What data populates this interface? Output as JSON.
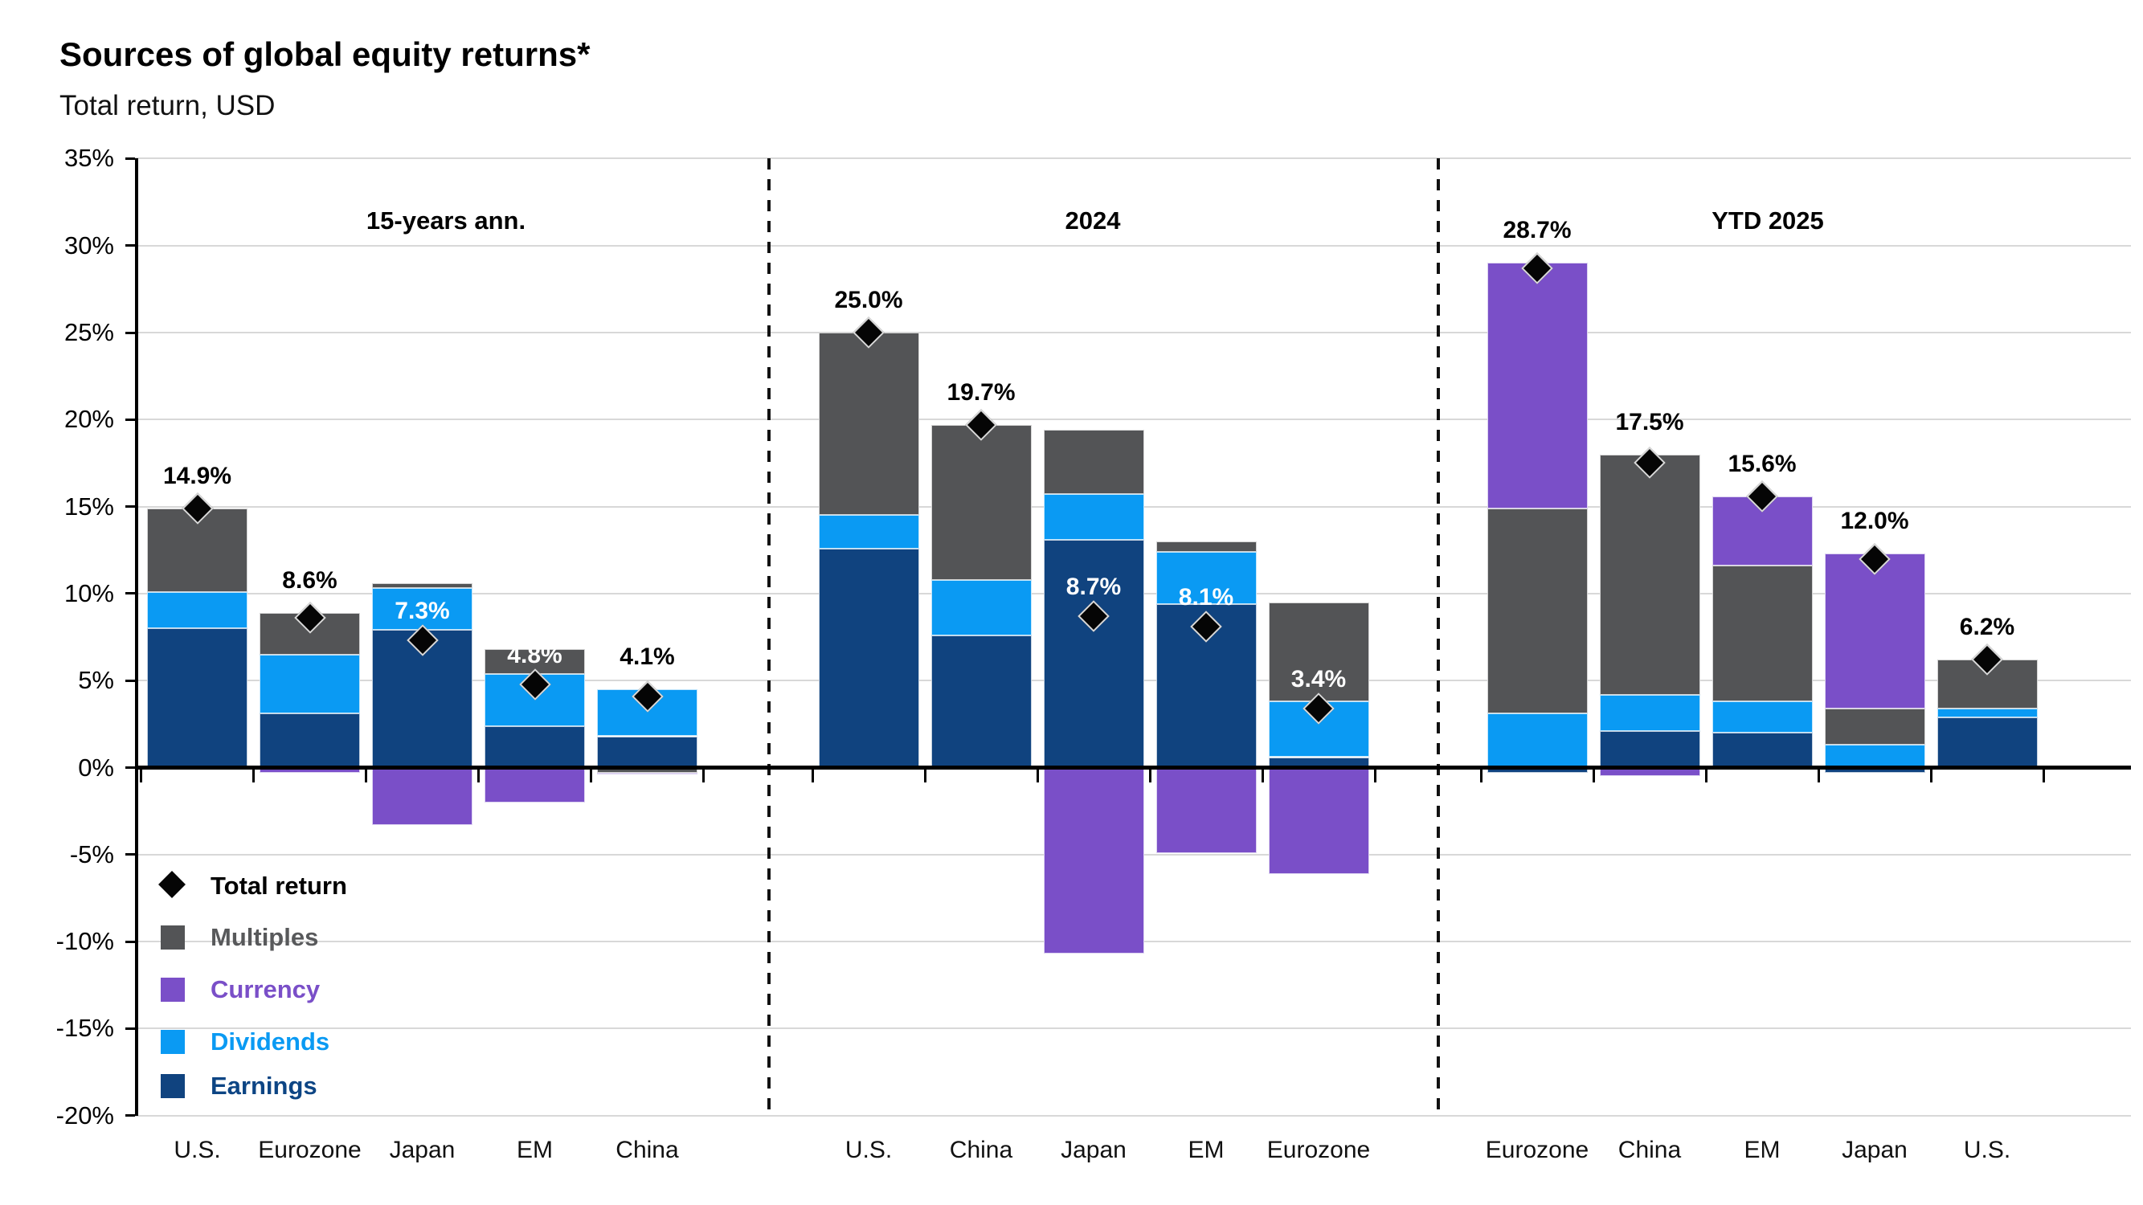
{
  "chart_data": {
    "type": "bar",
    "stacked": true,
    "title": "Sources of global equity returns*",
    "subtitle": "Total return, USD",
    "ylim": [
      -20,
      35
    ],
    "ytick_step": 5,
    "ytick_labels": [
      "35%",
      "30%",
      "25%",
      "20%",
      "15%",
      "10%",
      "5%",
      "0%",
      "-5%",
      "-10%",
      "-15%",
      "-20%"
    ],
    "grid": true,
    "legend_position": "bottom-left-inside",
    "series_order": [
      "earnings",
      "dividends",
      "multiples",
      "currency"
    ],
    "series_colors": {
      "earnings": "#10437f",
      "dividends": "#0a9af3",
      "multiples": "#535456",
      "currency": "#7a4fc8"
    },
    "marker_series": "Total return",
    "groups": [
      {
        "label": "15-years ann.",
        "bars": [
          {
            "category": "U.S.",
            "total": 14.9,
            "total_label": "14.9%",
            "label_color": "black",
            "segments": {
              "earnings": 8.0,
              "dividends": 2.1,
              "multiples": 4.8,
              "currency": 0
            }
          },
          {
            "category": "Eurozone",
            "total": 8.6,
            "total_label": "8.6%",
            "label_color": "black",
            "segments": {
              "earnings": 3.1,
              "dividends": 3.4,
              "multiples": 2.4,
              "currency": -0.3
            }
          },
          {
            "category": "Japan",
            "total": 7.3,
            "total_label": "7.3%",
            "label_color": "white",
            "segments": {
              "earnings": 7.9,
              "dividends": 2.4,
              "multiples": 0.3,
              "currency": -3.3
            }
          },
          {
            "category": "EM",
            "total": 4.8,
            "total_label": "4.8%",
            "label_color": "white",
            "segments": {
              "earnings": 2.4,
              "dividends": 3.0,
              "multiples": 1.4,
              "currency": -2.0
            }
          },
          {
            "category": "China",
            "total": 4.1,
            "total_label": "4.1%",
            "label_color": "black",
            "segments": {
              "earnings": 1.8,
              "dividends": 2.7,
              "multiples": -0.3,
              "currency": -0.1
            }
          }
        ]
      },
      {
        "label": "2024",
        "bars": [
          {
            "category": "U.S.",
            "total": 25.0,
            "total_label": "25.0%",
            "label_color": "black",
            "segments": {
              "earnings": 12.6,
              "dividends": 1.9,
              "multiples": 10.5,
              "currency": 0
            }
          },
          {
            "category": "China",
            "total": 19.7,
            "total_label": "19.7%",
            "label_color": "black",
            "segments": {
              "earnings": 7.6,
              "dividends": 3.2,
              "multiples": 8.9,
              "currency": 0
            }
          },
          {
            "category": "Japan",
            "total": 8.7,
            "total_label": "8.7%",
            "label_color": "white",
            "segments": {
              "earnings": 13.1,
              "dividends": 2.6,
              "multiples": 3.7,
              "currency": -10.7
            }
          },
          {
            "category": "EM",
            "total": 8.1,
            "total_label": "8.1%",
            "label_color": "white",
            "segments": {
              "earnings": 9.4,
              "dividends": 3.0,
              "multiples": 0.6,
              "currency": -4.9
            }
          },
          {
            "category": "Eurozone",
            "total": 3.4,
            "total_label": "3.4%",
            "label_color": "white",
            "segments": {
              "earnings": 0.6,
              "dividends": 3.2,
              "multiples": 5.7,
              "currency": -6.1
            }
          }
        ]
      },
      {
        "label": "YTD 2025",
        "bars": [
          {
            "category": "Eurozone",
            "total": 28.7,
            "total_label": "28.7%",
            "label_color": "black",
            "segments": {
              "earnings": -0.3,
              "dividends": 3.1,
              "multiples": 11.8,
              "currency": 14.1
            }
          },
          {
            "category": "China",
            "total": 17.5,
            "total_label": "17.5%",
            "label_color": "black",
            "segments": {
              "earnings": 2.1,
              "dividends": 2.1,
              "multiples": 13.8,
              "currency": -0.5
            }
          },
          {
            "category": "EM",
            "total": 15.6,
            "total_label": "15.6%",
            "label_color": "black",
            "segments": {
              "earnings": 2.0,
              "dividends": 1.8,
              "multiples": 7.8,
              "currency": 4.0
            }
          },
          {
            "category": "Japan",
            "total": 12.0,
            "total_label": "12.0%",
            "label_color": "black",
            "segments": {
              "earnings": -0.3,
              "dividends": 1.3,
              "multiples": 2.1,
              "currency": 8.9
            }
          },
          {
            "category": "U.S.",
            "total": 6.2,
            "total_label": "6.2%",
            "label_color": "black",
            "segments": {
              "earnings": 2.9,
              "dividends": 0.5,
              "multiples": 2.8,
              "currency": 0
            }
          }
        ]
      }
    ]
  },
  "legend": {
    "items": [
      {
        "key": "total_return",
        "label": "Total return",
        "type": "diamond",
        "color": "#050505",
        "text_color": "#000000"
      },
      {
        "key": "multiples",
        "label": "Multiples",
        "type": "square",
        "color": "#535456",
        "text_color": "#58595b"
      },
      {
        "key": "currency",
        "label": "Currency",
        "type": "square",
        "color": "#7a4fc8",
        "text_color": "#7a4fc8"
      },
      {
        "key": "dividends",
        "label": "Dividends",
        "type": "square",
        "color": "#0a9af3",
        "text_color": "#0a9af3"
      },
      {
        "key": "earnings",
        "label": "Earnings",
        "type": "square",
        "color": "#10437f",
        "text_color": "#0d4584"
      }
    ]
  }
}
